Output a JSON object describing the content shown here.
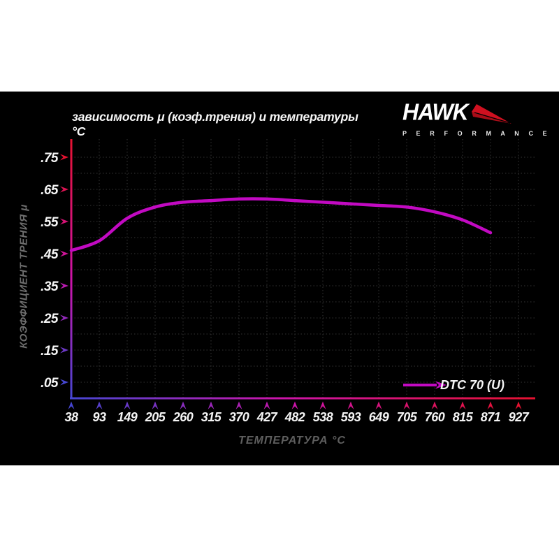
{
  "header": {
    "title": "зависимость μ (коэф.трения) и температуры °C",
    "logo": {
      "name": "HAWK",
      "tagline": "P E R F O R M A N C E"
    }
  },
  "chart": {
    "y_axis_title": "КОЭФФИЦИЕНТ ТРЕНИЯ μ",
    "x_axis_title": "ТЕМПЕРАТУРА °C",
    "legend_label": "DTC 70 (U)"
  },
  "chart_data": {
    "type": "line",
    "title": "зависимость μ (коэф.трения) и температуры °C",
    "xlabel": "ТЕМПЕРАТУРА °C",
    "ylabel": "КОЭФФИЦИЕНТ ТРЕНИЯ μ",
    "categories": [
      38,
      93,
      149,
      205,
      260,
      315,
      370,
      427,
      482,
      538,
      593,
      649,
      705,
      760,
      815,
      871,
      927
    ],
    "y_tick_labels": [
      ".05",
      ".15",
      ".25",
      ".35",
      ".45",
      ".55",
      ".65",
      ".75"
    ],
    "ylim": [
      0,
      0.79
    ],
    "grid": "dotted",
    "legend_position": "bottom-right",
    "series": [
      {
        "name": "DTC 70 (U)",
        "color": "#c20ac2",
        "x": [
          38,
          93,
          149,
          205,
          260,
          315,
          370,
          427,
          482,
          538,
          593,
          649,
          705,
          760,
          815,
          871
        ],
        "values": [
          0.46,
          0.49,
          0.56,
          0.595,
          0.61,
          0.615,
          0.62,
          0.62,
          0.615,
          0.61,
          0.605,
          0.6,
          0.595,
          0.58,
          0.555,
          0.515
        ]
      }
    ]
  },
  "colors": {
    "background": "#ffffff",
    "panel": "#000000",
    "curve": "#c20ac2",
    "grid": "#333333",
    "axis_blue": "#4646d2",
    "axis_magenta": "#cc14aa",
    "axis_red": "#e41230",
    "logo_red": "#cf1020",
    "text_white": "#f5f5f5",
    "text_gray": "#6e6e6e"
  }
}
